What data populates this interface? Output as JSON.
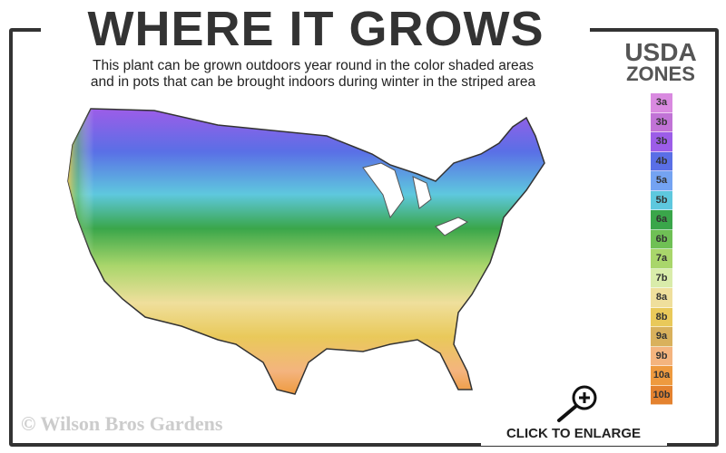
{
  "header": {
    "title": "WHERE IT GROWS",
    "subtitle_line1": "This plant can be grown outdoors year round in the color shaded areas",
    "subtitle_line2": "and in pots that can be brought indoors during winter in the striped area"
  },
  "legend": {
    "title_line1": "USDA",
    "title_line2": "ZONES",
    "zones": [
      {
        "label": "3a",
        "color": "#d98ae0"
      },
      {
        "label": "3b",
        "color": "#c173d6"
      },
      {
        "label": "3b",
        "color": "#9c5de8"
      },
      {
        "label": "4b",
        "color": "#5a6fe6"
      },
      {
        "label": "5a",
        "color": "#74a3f2"
      },
      {
        "label": "5b",
        "color": "#5ec8de"
      },
      {
        "label": "6a",
        "color": "#3aa64a"
      },
      {
        "label": "6b",
        "color": "#6fc055"
      },
      {
        "label": "7a",
        "color": "#a9d66b"
      },
      {
        "label": "7b",
        "color": "#d9ecaa"
      },
      {
        "label": "8a",
        "color": "#efdf9c"
      },
      {
        "label": "8b",
        "color": "#e9c95a"
      },
      {
        "label": "9a",
        "color": "#d9b15c"
      },
      {
        "label": "9b",
        "color": "#f4b47e"
      },
      {
        "label": "10a",
        "color": "#ee9a3f"
      },
      {
        "label": "10b",
        "color": "#e4822f"
      }
    ]
  },
  "footer": {
    "copyright": "© Wilson Bros Gardens",
    "enlarge_label": "CLICK TO ENLARGE",
    "enlarge_icon": "zoom-in-magnifier-icon"
  }
}
